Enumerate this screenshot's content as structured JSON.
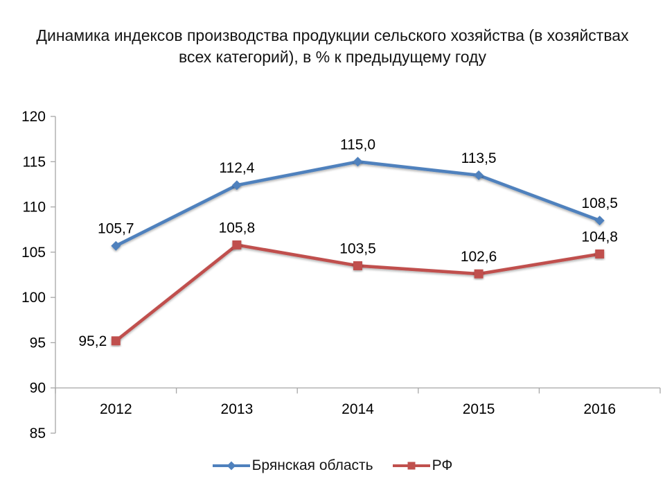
{
  "title": "Динамика индексов производства продукции сельского хозяйства (в хозяйствах всех категорий), в % к предыдущему году",
  "chart_data": {
    "type": "line",
    "categories": [
      "2012",
      "2013",
      "2014",
      "2015",
      "2016"
    ],
    "series": [
      {
        "name": "Брянская область",
        "values": [
          105.7,
          112.4,
          115.0,
          113.5,
          108.5
        ],
        "labels": [
          "105,7",
          "112,4",
          "115,0",
          "113,5",
          "108,5"
        ],
        "label_positions": [
          "above",
          "above",
          "above",
          "above",
          "above"
        ],
        "color": "#4F81BD",
        "marker": "diamond"
      },
      {
        "name": "РФ",
        "values": [
          95.2,
          105.8,
          103.5,
          102.6,
          104.8
        ],
        "labels": [
          "95,2",
          "105,8",
          "103,5",
          "102,6",
          "104,8"
        ],
        "label_positions": [
          "left",
          "above",
          "above",
          "above",
          "above"
        ],
        "color": "#C0504D",
        "marker": "square"
      }
    ],
    "ylim": [
      85,
      120
    ],
    "ytick_step": 5,
    "yticks": [
      "85",
      "90",
      "95",
      "100",
      "105",
      "110",
      "115",
      "120"
    ],
    "axis_cross_y": 90,
    "grid": false,
    "legend_position": "bottom",
    "axis_color": "#A6A6A6",
    "text_color": "#000000"
  }
}
